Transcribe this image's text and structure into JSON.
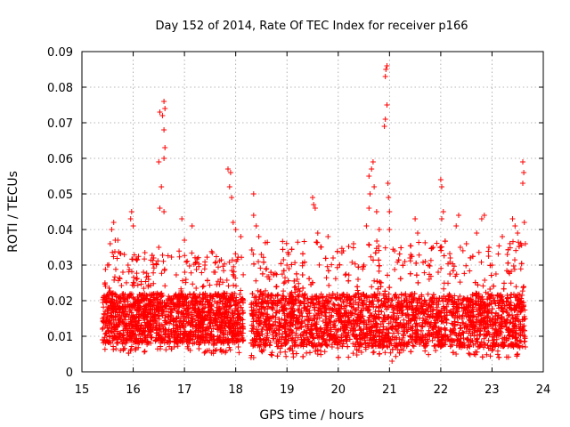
{
  "chart_data": {
    "type": "scatter",
    "title": "Day 152 of 2014, Rate Of TEC Index for receiver p166",
    "xlabel": "GPS time / hours",
    "ylabel": "ROTI / TECUs",
    "xlim": [
      15,
      24
    ],
    "ylim": [
      0,
      0.09
    ],
    "xticks": [
      "15",
      "16",
      "17",
      "18",
      "19",
      "20",
      "21",
      "22",
      "23",
      "24"
    ],
    "yticks": [
      "0",
      "0.01",
      "0.02",
      "0.03",
      "0.04",
      "0.05",
      "0.06",
      "0.07",
      "0.08",
      "0.09"
    ],
    "grid": true,
    "marker": "+",
    "color": "#ff0000",
    "series": [
      {
        "name": "ROTI",
        "segments": [
          {
            "x_start": 15.4,
            "x_end": 18.15,
            "base_low": 0.008,
            "base_high": 0.022,
            "upper": 0.03
          },
          {
            "x_start": 18.3,
            "x_end": 23.65,
            "base_low": 0.007,
            "base_high": 0.022,
            "upper": 0.033
          }
        ],
        "points": [
          [
            15.4,
            0.012
          ],
          [
            15.42,
            0.021
          ],
          [
            15.45,
            0.025
          ],
          [
            15.5,
            0.03
          ],
          [
            15.55,
            0.036
          ],
          [
            15.58,
            0.04
          ],
          [
            15.62,
            0.042
          ],
          [
            15.65,
            0.037
          ],
          [
            15.7,
            0.037
          ],
          [
            15.8,
            0.028
          ],
          [
            15.9,
            0.03
          ],
          [
            15.95,
            0.043
          ],
          [
            15.97,
            0.045
          ],
          [
            16.0,
            0.041
          ],
          [
            16.2,
            0.028
          ],
          [
            16.3,
            0.026
          ],
          [
            16.4,
            0.032
          ],
          [
            16.5,
            0.035
          ],
          [
            16.52,
            0.046
          ],
          [
            16.55,
            0.052
          ],
          [
            16.5,
            0.059
          ],
          [
            16.52,
            0.073
          ],
          [
            16.57,
            0.072
          ],
          [
            16.6,
            0.076
          ],
          [
            16.62,
            0.074
          ],
          [
            16.6,
            0.068
          ],
          [
            16.62,
            0.063
          ],
          [
            16.6,
            0.06
          ],
          [
            16.6,
            0.045
          ],
          [
            16.95,
            0.043
          ],
          [
            17.0,
            0.037
          ],
          [
            17.15,
            0.041
          ],
          [
            17.4,
            0.03
          ],
          [
            17.6,
            0.028
          ],
          [
            17.7,
            0.026
          ],
          [
            17.85,
            0.057
          ],
          [
            17.9,
            0.056
          ],
          [
            17.88,
            0.052
          ],
          [
            17.92,
            0.049
          ],
          [
            17.95,
            0.042
          ],
          [
            18.0,
            0.04
          ],
          [
            18.1,
            0.038
          ],
          [
            18.35,
            0.05
          ],
          [
            18.35,
            0.044
          ],
          [
            18.4,
            0.041
          ],
          [
            18.45,
            0.038
          ],
          [
            18.5,
            0.033
          ],
          [
            18.6,
            0.029
          ],
          [
            18.8,
            0.024
          ],
          [
            19.0,
            0.03
          ],
          [
            19.2,
            0.026
          ],
          [
            19.5,
            0.049
          ],
          [
            19.52,
            0.047
          ],
          [
            19.55,
            0.046
          ],
          [
            19.6,
            0.039
          ],
          [
            19.8,
            0.038
          ],
          [
            19.9,
            0.032
          ],
          [
            20.1,
            0.034
          ],
          [
            20.3,
            0.036
          ],
          [
            20.5,
            0.03
          ],
          [
            20.55,
            0.041
          ],
          [
            20.6,
            0.046
          ],
          [
            20.62,
            0.05
          ],
          [
            20.6,
            0.055
          ],
          [
            20.65,
            0.057
          ],
          [
            20.68,
            0.059
          ],
          [
            20.7,
            0.052
          ],
          [
            20.75,
            0.045
          ],
          [
            20.8,
            0.04
          ],
          [
            20.9,
            0.069
          ],
          [
            20.92,
            0.071
          ],
          [
            20.95,
            0.075
          ],
          [
            20.92,
            0.083
          ],
          [
            20.95,
            0.086
          ],
          [
            20.93,
            0.085
          ],
          [
            20.97,
            0.053
          ],
          [
            20.98,
            0.049
          ],
          [
            21.0,
            0.045
          ],
          [
            21.0,
            0.04
          ],
          [
            21.1,
            0.034
          ],
          [
            21.3,
            0.031
          ],
          [
            21.4,
            0.032
          ],
          [
            21.5,
            0.043
          ],
          [
            21.55,
            0.039
          ],
          [
            21.7,
            0.031
          ],
          [
            21.85,
            0.035
          ],
          [
            21.95,
            0.028
          ],
          [
            22.0,
            0.054
          ],
          [
            22.02,
            0.052
          ],
          [
            22.05,
            0.045
          ],
          [
            22.02,
            0.043
          ],
          [
            22.3,
            0.041
          ],
          [
            22.35,
            0.044
          ],
          [
            22.5,
            0.036
          ],
          [
            22.7,
            0.039
          ],
          [
            22.8,
            0.043
          ],
          [
            22.85,
            0.044
          ],
          [
            23.0,
            0.03
          ],
          [
            23.2,
            0.038
          ],
          [
            23.3,
            0.033
          ],
          [
            23.4,
            0.043
          ],
          [
            23.45,
            0.041
          ],
          [
            23.5,
            0.039
          ],
          [
            23.6,
            0.059
          ],
          [
            23.62,
            0.056
          ],
          [
            23.6,
            0.053
          ],
          [
            23.63,
            0.042
          ],
          [
            23.65,
            0.036
          ],
          [
            21.05,
            0.003
          ],
          [
            20.8,
            0.01
          ],
          [
            18.3,
            0.004
          ],
          [
            18.35,
            0.004
          ],
          [
            18.5,
            0.006
          ],
          [
            19.6,
            0.005
          ],
          [
            20.4,
            0.006
          ],
          [
            20.8,
            0.005
          ],
          [
            21.9,
            0.006
          ],
          [
            22.65,
            0.005
          ],
          [
            23.0,
            0.006
          ],
          [
            23.5,
            0.005
          ],
          [
            15.75,
            0.006
          ],
          [
            16.8,
            0.007
          ],
          [
            17.6,
            0.006
          ],
          [
            18.05,
            0.007
          ],
          [
            23.65,
            0.007
          ],
          [
            15.4,
            0.009
          ]
        ]
      }
    ]
  }
}
